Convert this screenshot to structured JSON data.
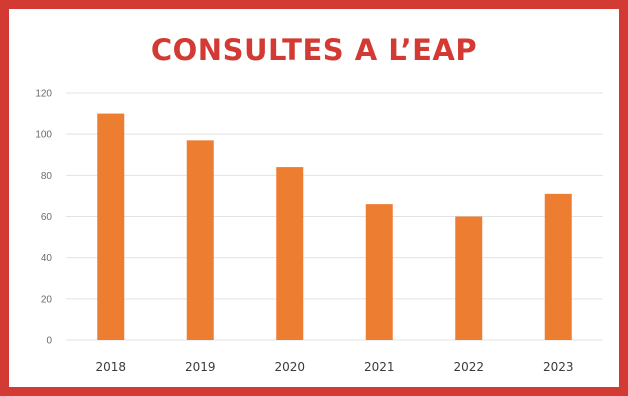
{
  "chart_data": {
    "type": "bar",
    "title": "CONSULTES A L’EAP",
    "xlabel": "",
    "ylabel": "",
    "categories": [
      "2018",
      "2019",
      "2020",
      "2021",
      "2022",
      "2023"
    ],
    "values": [
      110,
      97,
      84,
      66,
      60,
      71
    ],
    "ylim": [
      0,
      120
    ],
    "yticks": [
      0,
      20,
      40,
      60,
      80,
      100,
      120
    ],
    "grid": true,
    "legend": "none",
    "colors": {
      "bar": "#ed7d31",
      "frame": "#d23a33",
      "title": "#d23a33",
      "grid": "#e3e3e3"
    }
  }
}
